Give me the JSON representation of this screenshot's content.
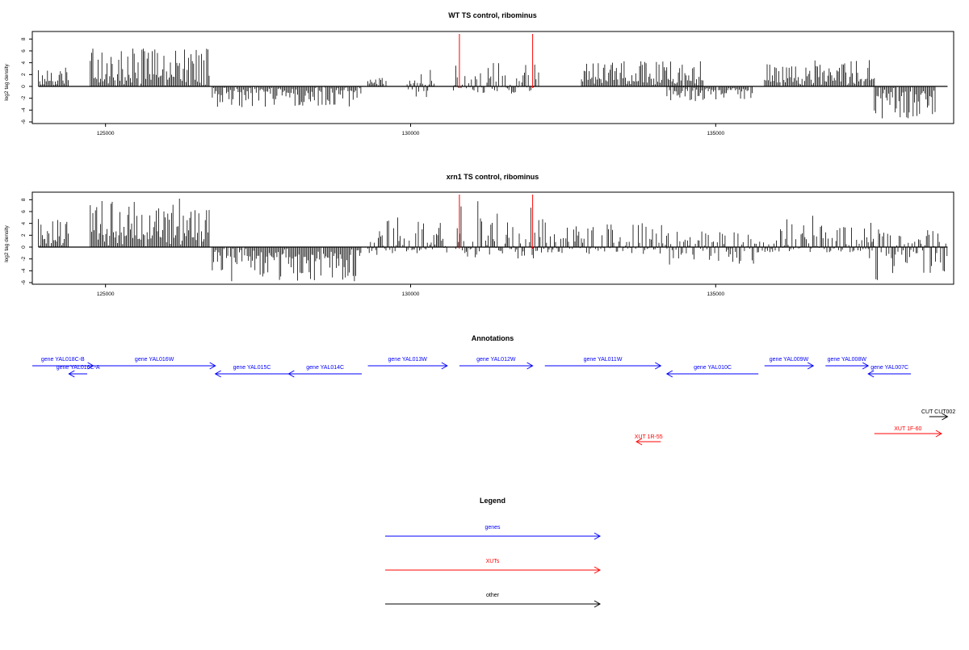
{
  "chart_data": [
    {
      "type": "bar",
      "title": "WT TS control, ribominus",
      "xlabel": "",
      "ylabel": "log2 tag density",
      "xlim": [
        123800,
        138900
      ],
      "ylim": [
        -6,
        9
      ],
      "xticks": [
        125000,
        130000,
        135000
      ],
      "yticks": [
        -6,
        -4,
        -2,
        0,
        2,
        4,
        6,
        8
      ],
      "highlight_x": [
        130800,
        132000
      ],
      "highlight_color": "#ff0000",
      "bar_color": "#000000",
      "signal_segments": [
        {
          "x": [
            123900,
            124400
          ],
          "min": 0,
          "max": 3.2
        },
        {
          "x": [
            124750,
            126700
          ],
          "min": 0,
          "max": 6.4
        },
        {
          "x": [
            126750,
            129200
          ],
          "min": -3.5,
          "max": 0
        },
        {
          "x": [
            129300,
            129600
          ],
          "min": 0,
          "max": 1.5
        },
        {
          "x": [
            129900,
            130400
          ],
          "min": -1.8,
          "max": 3.0
        },
        {
          "x": [
            130700,
            132100
          ],
          "min": -1.2,
          "max": 4.5
        },
        {
          "x": [
            132800,
            134800
          ],
          "min": 0,
          "max": 4.3
        },
        {
          "x": [
            134200,
            135600
          ],
          "min": -2.5,
          "max": 0
        },
        {
          "x": [
            135800,
            137600
          ],
          "min": 0,
          "max": 4.5
        },
        {
          "x": [
            137600,
            138600
          ],
          "min": -5.5,
          "max": 0
        }
      ]
    },
    {
      "type": "bar",
      "title": "xrn1 TS control, ribominus",
      "xlabel": "",
      "ylabel": "log2 tag density",
      "xlim": [
        123800,
        138900
      ],
      "ylim": [
        -6,
        9
      ],
      "xticks": [
        125000,
        130000,
        135000
      ],
      "yticks": [
        -6,
        -4,
        -2,
        0,
        2,
        4,
        6,
        8
      ],
      "highlight_x": [
        130800,
        132000
      ],
      "highlight_color": "#ff0000",
      "bar_color": "#000000",
      "signal_segments": [
        {
          "x": [
            123900,
            124400
          ],
          "min": 0,
          "max": 4.8
        },
        {
          "x": [
            124750,
            126700
          ],
          "min": 0,
          "max": 8.4
        },
        {
          "x": [
            126750,
            129200
          ],
          "min": -5.8,
          "max": 0
        },
        {
          "x": [
            129300,
            130600
          ],
          "min": -1.5,
          "max": 5.0
        },
        {
          "x": [
            130700,
            132100
          ],
          "min": -2.2,
          "max": 8.0
        },
        {
          "x": [
            132100,
            134200
          ],
          "min": -1.2,
          "max": 5.2
        },
        {
          "x": [
            134200,
            135700
          ],
          "min": -3.0,
          "max": 2.8
        },
        {
          "x": [
            135700,
            137600
          ],
          "min": -1.0,
          "max": 5.4
        },
        {
          "x": [
            137500,
            138800
          ],
          "min": -5.6,
          "max": 3.0
        }
      ]
    }
  ],
  "annotations": {
    "title": "Annotations",
    "features": [
      {
        "label": "gene YAL018C-B",
        "kind": "genes",
        "strand": "+",
        "start": 123800,
        "end": 124800,
        "row": 0
      },
      {
        "label": "gene YAL016W",
        "kind": "genes",
        "strand": "+",
        "start": 124800,
        "end": 126800,
        "row": 0
      },
      {
        "label": "gene YAL016C-A",
        "kind": "genes",
        "strand": "-",
        "start": 124400,
        "end": 124700,
        "row": 1
      },
      {
        "label": "gene YAL015C",
        "kind": "genes",
        "strand": "-",
        "start": 126800,
        "end": 128000,
        "row": 0
      },
      {
        "label": "gene YAL014C",
        "kind": "genes",
        "strand": "-",
        "start": 128000,
        "end": 129200,
        "row": 0
      },
      {
        "label": "gene YAL013W",
        "kind": "genes",
        "strand": "+",
        "start": 129300,
        "end": 130600,
        "row": 0
      },
      {
        "label": "gene YAL012W",
        "kind": "genes",
        "strand": "+",
        "start": 130800,
        "end": 132000,
        "row": 0
      },
      {
        "label": "gene YAL011W",
        "kind": "genes",
        "strand": "+",
        "start": 132200,
        "end": 134100,
        "row": 0
      },
      {
        "label": "gene YAL010C",
        "kind": "genes",
        "strand": "-",
        "start": 134200,
        "end": 135700,
        "row": 0
      },
      {
        "label": "gene YAL009W",
        "kind": "genes",
        "strand": "+",
        "start": 135800,
        "end": 136600,
        "row": 0
      },
      {
        "label": "gene YAL008W",
        "kind": "genes",
        "strand": "+",
        "start": 136800,
        "end": 137500,
        "row": 0
      },
      {
        "label": "gene YAL007C",
        "kind": "genes",
        "strand": "-",
        "start": 137500,
        "end": 138200,
        "row": 0
      },
      {
        "label": "CUT CUT002",
        "kind": "other",
        "strand": "+",
        "start": 138500,
        "end": 138800,
        "row": 2
      },
      {
        "label": "XUT 1F-60",
        "kind": "XUTs",
        "strand": "+",
        "start": 137600,
        "end": 138700,
        "row": 3
      },
      {
        "label": "XUT 1R-55",
        "kind": "XUTs",
        "strand": "-",
        "start": 133700,
        "end": 134100,
        "row": 4
      }
    ]
  },
  "legend": {
    "title": "Legend",
    "items": [
      {
        "label": "genes",
        "color": "#0000ff"
      },
      {
        "label": "XUTs",
        "color": "#ff0000"
      },
      {
        "label": "other",
        "color": "#000000"
      }
    ]
  }
}
